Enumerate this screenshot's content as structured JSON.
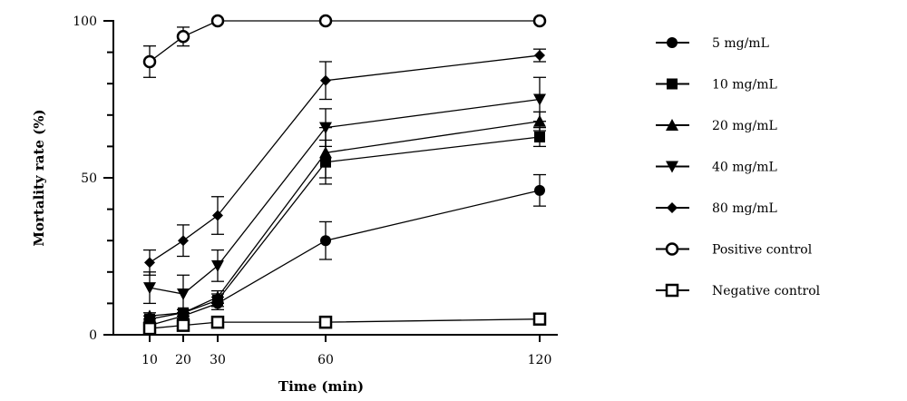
{
  "chart_data": {
    "type": "line",
    "title": "",
    "xlabel": "Time (min)",
    "ylabel": "Mortality rate (%)",
    "x": [
      10,
      20,
      30,
      60,
      120
    ],
    "x_ticks": [
      10,
      20,
      30,
      60,
      120
    ],
    "y_ticks": [
      0,
      50,
      100
    ],
    "ylim": [
      0,
      100
    ],
    "grid": false,
    "legend_position": "right",
    "error_bars": true,
    "series": [
      {
        "name": "5 mg/mL",
        "marker": "circle-filled",
        "values": [
          3,
          6,
          10,
          30,
          46
        ],
        "errors": [
          1,
          1,
          2,
          6,
          5
        ]
      },
      {
        "name": "10 mg/mL",
        "marker": "square-filled",
        "values": [
          5,
          7,
          11,
          55,
          63
        ],
        "errors": [
          1,
          1,
          2,
          7,
          3
        ]
      },
      {
        "name": "20 mg/mL",
        "marker": "triangle-up-filled",
        "values": [
          6,
          7,
          12,
          58,
          68
        ],
        "errors": [
          1,
          1,
          2,
          8,
          3
        ]
      },
      {
        "name": "40 mg/mL",
        "marker": "triangle-down-filled",
        "values": [
          15,
          13,
          22,
          66,
          75
        ],
        "errors": [
          5,
          6,
          5,
          6,
          7
        ]
      },
      {
        "name": "80 mg/mL",
        "marker": "diamond-filled",
        "values": [
          23,
          30,
          38,
          81,
          89
        ],
        "errors": [
          4,
          5,
          6,
          6,
          2
        ]
      },
      {
        "name": "Positive control",
        "marker": "circle-open",
        "values": [
          87,
          95,
          100,
          100,
          100
        ],
        "errors": [
          5,
          3,
          0,
          0,
          0
        ]
      },
      {
        "name": "Negative control",
        "marker": "square-open",
        "values": [
          2,
          3,
          4,
          4,
          5
        ],
        "errors": [
          0,
          0,
          0,
          0,
          0
        ]
      }
    ]
  }
}
